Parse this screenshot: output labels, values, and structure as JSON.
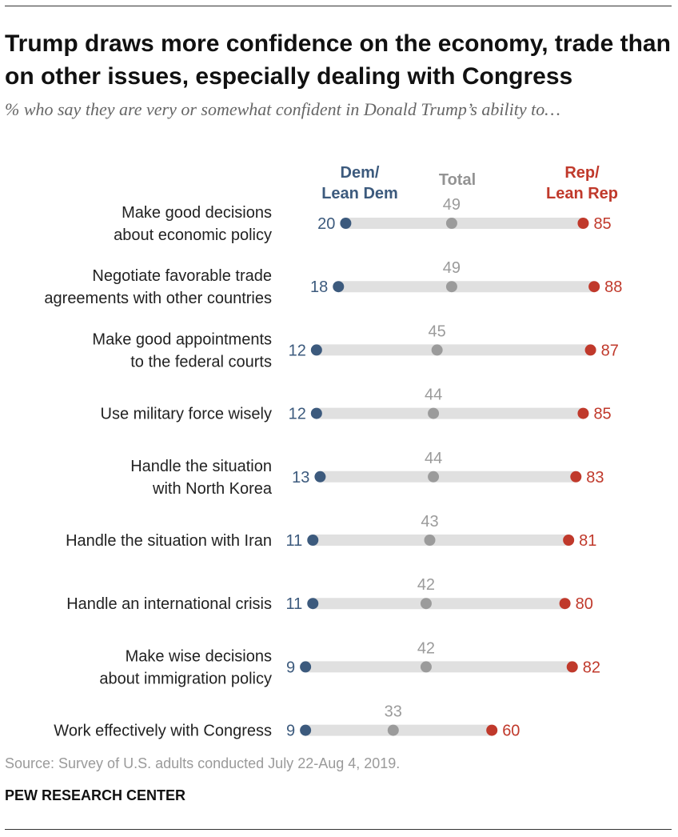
{
  "header": {
    "title": "Trump draws more confidence on the economy, trade than on other issues, especially dealing with Congress",
    "subtitle": "% who say they are very or somewhat confident in Donald Trump’s ability to…"
  },
  "legend": {
    "dem": [
      "Dem/",
      "Lean Dem"
    ],
    "total": "Total",
    "rep": [
      "Rep/",
      "Lean Rep"
    ]
  },
  "colors": {
    "dem": "#3c5a7d",
    "total": "#9b9b9b",
    "rep": "#c0392b",
    "track": "#e0e0e0"
  },
  "chart_data": {
    "type": "dot",
    "series": [
      {
        "key": "dem",
        "name": "Dem/Lean Dem"
      },
      {
        "key": "total",
        "name": "Total"
      },
      {
        "key": "rep",
        "name": "Rep/Lean Rep"
      }
    ],
    "xlim": [
      0,
      100
    ],
    "categories": [
      {
        "label": [
          "Make good decisions",
          "about economic policy"
        ],
        "dem": 20,
        "total": 49,
        "rep": 85
      },
      {
        "label": [
          "Negotiate favorable trade",
          "agreements with other countries"
        ],
        "dem": 18,
        "total": 49,
        "rep": 88
      },
      {
        "label": [
          "Make good appointments",
          "to the federal courts"
        ],
        "dem": 12,
        "total": 45,
        "rep": 87
      },
      {
        "label": [
          "Use military force wisely"
        ],
        "dem": 12,
        "total": 44,
        "rep": 85
      },
      {
        "label": [
          "Handle the situation",
          "with North Korea"
        ],
        "dem": 13,
        "total": 44,
        "rep": 83
      },
      {
        "label": [
          "Handle the situation with Iran"
        ],
        "dem": 11,
        "total": 43,
        "rep": 81
      },
      {
        "label": [
          "Handle an international crisis"
        ],
        "dem": 11,
        "total": 42,
        "rep": 80
      },
      {
        "label": [
          "Make wise decisions",
          "about immigration policy"
        ],
        "dem": 9,
        "total": 42,
        "rep": 82
      },
      {
        "label": [
          "Work effectively with Congress"
        ],
        "dem": 9,
        "total": 33,
        "rep": 60
      }
    ]
  },
  "footer": {
    "source": "Source: Survey of U.S. adults conducted July 22-Aug 4, 2019.",
    "brand": "PEW RESEARCH CENTER"
  }
}
